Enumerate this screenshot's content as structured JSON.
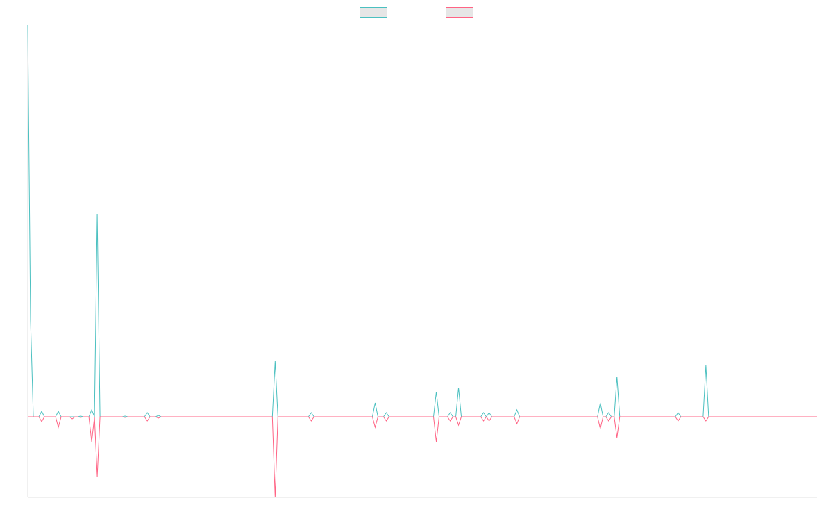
{
  "chart_data": {
    "type": "line",
    "x": [
      0,
      1,
      2,
      4,
      5,
      6,
      10,
      11,
      12,
      15,
      16,
      17,
      18,
      19,
      20,
      22,
      23,
      24,
      25,
      26,
      34,
      35,
      36,
      42,
      43,
      44,
      46,
      47,
      48,
      88,
      89,
      90,
      101,
      102,
      103,
      124,
      125,
      126,
      128,
      129,
      130,
      146,
      147,
      148,
      151,
      152,
      153,
      154,
      155,
      156,
      163,
      164,
      165,
      166,
      167,
      175,
      176,
      177,
      205,
      206,
      207,
      208,
      209,
      210,
      211,
      212,
      213,
      233,
      234,
      235,
      243,
      244,
      245,
      284
    ],
    "series": [
      {
        "color": "#4bc0c0",
        "values": [
          564,
          140,
          0,
          0,
          8,
          0,
          0,
          8,
          0,
          0,
          0,
          0,
          0,
          1,
          0,
          0,
          10,
          0,
          292,
          0,
          0,
          1,
          0,
          0,
          6,
          0,
          0,
          2,
          0,
          0,
          80,
          0,
          0,
          6,
          0,
          0,
          20,
          0,
          0,
          6,
          0,
          0,
          36,
          0,
          0,
          6,
          0,
          0,
          42,
          0,
          0,
          6,
          0,
          6,
          0,
          0,
          10,
          0,
          0,
          20,
          0,
          0,
          6,
          0,
          0,
          58,
          0,
          0,
          6,
          0,
          0,
          74,
          0,
          0
        ]
      },
      {
        "color": "#ff6384",
        "values": [
          0,
          0,
          0,
          0,
          -7,
          0,
          0,
          -15,
          0,
          0,
          -3,
          0,
          0,
          -1,
          0,
          0,
          -36,
          0,
          -86,
          0,
          0,
          -1,
          0,
          0,
          -6,
          0,
          0,
          -2,
          0,
          0,
          -116,
          0,
          0,
          -6,
          0,
          0,
          -15,
          0,
          0,
          -6,
          0,
          0,
          -36,
          0,
          0,
          -6,
          0,
          0,
          -12,
          0,
          0,
          -6,
          0,
          -6,
          0,
          0,
          -10,
          0,
          0,
          -17,
          0,
          0,
          -6,
          0,
          0,
          -30,
          0,
          0,
          -6,
          0,
          0,
          -6,
          0,
          0
        ]
      }
    ],
    "xlim": [
      0,
      284
    ],
    "ylim": [
      -116,
      564
    ],
    "legend": "top"
  }
}
